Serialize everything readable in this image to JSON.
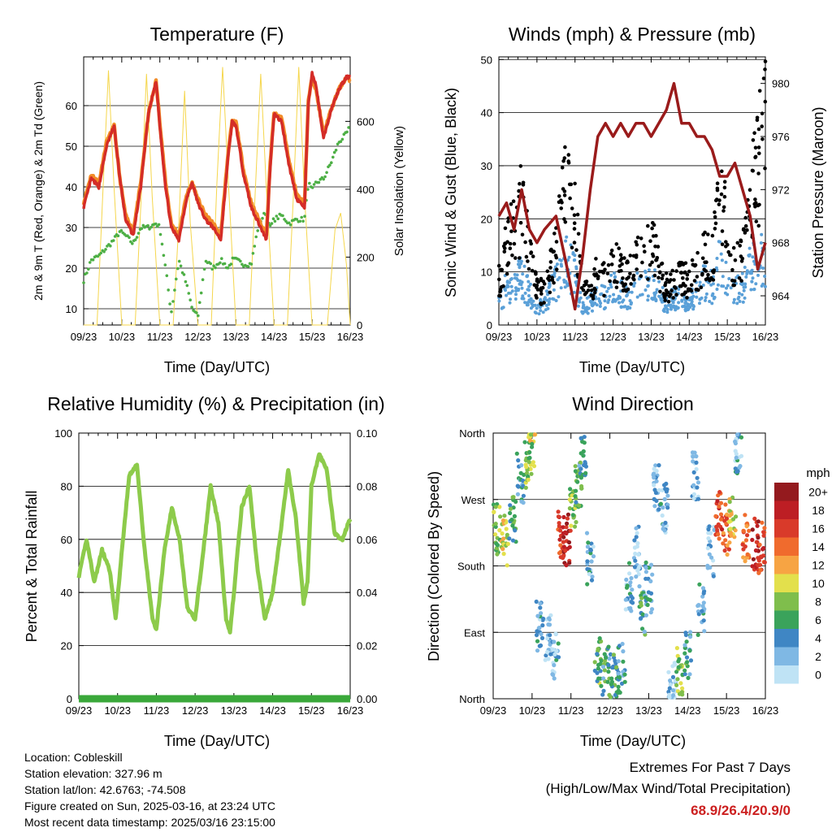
{
  "colors": {
    "t2m": "#d42c27",
    "t9m": "#f28c28",
    "td": "#4daf45",
    "solar": "#f5d64c",
    "wind": "#000000",
    "gust": "#5aa0d8",
    "pressure": "#9a1b1b",
    "rh": "#8dcb4b",
    "precip": "#3aa83a",
    "extremes": "#cc1f1f"
  },
  "time_ticks": [
    "09/23",
    "10/23",
    "11/23",
    "12/23",
    "13/23",
    "14/23",
    "15/23",
    "16/23"
  ],
  "chart_data": [
    {
      "id": "temperature",
      "type": "line",
      "title": "Temperature (F)",
      "xlabel": "Time (Day/UTC)",
      "ylabel": "2m & 9m T (Red, Orange) & 2m Td (Green)",
      "y2label": "Solar Insolation (Yellow)",
      "ylim": [
        6,
        72
      ],
      "yticks": [
        10,
        20,
        30,
        40,
        50,
        60
      ],
      "y2lim": [
        0,
        790
      ],
      "y2ticks": [
        0,
        200,
        400,
        600
      ],
      "x": [
        9.0,
        9.2,
        9.4,
        9.6,
        9.8,
        9.95,
        10.1,
        10.3,
        10.5,
        10.7,
        10.9,
        11.0,
        11.15,
        11.3,
        11.5,
        11.7,
        11.85,
        12.0,
        12.2,
        12.4,
        12.6,
        12.8,
        12.9,
        13.0,
        13.2,
        13.4,
        13.6,
        13.8,
        13.9,
        14.0,
        14.2,
        14.4,
        14.6,
        14.8,
        14.9,
        15.0,
        15.1,
        15.3,
        15.5,
        15.7,
        15.9,
        16.0
      ],
      "series": [
        {
          "name": "2m T",
          "values": [
            35,
            42,
            40,
            50,
            55,
            42,
            32,
            28,
            40,
            58,
            66,
            55,
            40,
            30,
            27,
            37,
            41,
            36,
            32,
            30,
            27,
            48,
            56,
            55,
            43,
            35,
            31,
            27,
            45,
            58,
            56,
            45,
            37,
            35,
            60,
            68,
            65,
            52,
            59,
            64,
            67,
            67
          ]
        },
        {
          "name": "9m T",
          "values": [
            36,
            43,
            41,
            51,
            55,
            42,
            33,
            29,
            41,
            58,
            66,
            56,
            41,
            31,
            28,
            38,
            41,
            37,
            33,
            31,
            28,
            49,
            56,
            56,
            44,
            36,
            32,
            28,
            46,
            58,
            57,
            46,
            38,
            36,
            61,
            67,
            64,
            53,
            59,
            64,
            67,
            66
          ]
        },
        {
          "name": "2m Td",
          "values": [
            17,
            22,
            23,
            25,
            27,
            29,
            28,
            26,
            30,
            30,
            31,
            30,
            20,
            9,
            22,
            16,
            10,
            8,
            22,
            20,
            22,
            20,
            22,
            22,
            21,
            21,
            31,
            34,
            30,
            32,
            33,
            31,
            32,
            32,
            41,
            39,
            41,
            42,
            46,
            51,
            53,
            55
          ]
        },
        {
          "name": "Solar Insolation",
          "axis": "y2",
          "x": [
            9.0,
            9.2,
            9.35,
            9.5,
            9.65,
            9.8,
            10.0,
            10.35,
            10.5,
            10.65,
            10.8,
            11.0,
            11.35,
            11.5,
            11.65,
            11.8,
            12.0,
            12.35,
            12.5,
            12.65,
            12.8,
            13.0,
            13.35,
            13.5,
            13.65,
            13.8,
            14.0,
            14.35,
            14.5,
            14.65,
            14.8,
            15.0,
            15.4,
            15.6,
            15.75,
            15.9,
            16.0
          ],
          "values": [
            0,
            0,
            0,
            380,
            750,
            400,
            0,
            0,
            350,
            740,
            380,
            0,
            0,
            300,
            690,
            300,
            0,
            0,
            420,
            760,
            420,
            0,
            0,
            380,
            740,
            400,
            0,
            0,
            360,
            760,
            380,
            0,
            0,
            280,
            330,
            180,
            0
          ]
        }
      ]
    },
    {
      "id": "winds",
      "type": "scatter",
      "title": "Winds (mph) & Pressure (mb)",
      "xlabel": "Time (Day/UTC)",
      "ylabel": "Sonic Wind & Gust (Blue, Black)",
      "y2label": "Station Pressure (Maroon)",
      "ylim": [
        0,
        50.5
      ],
      "yticks": [
        0,
        10,
        20,
        30,
        40,
        50
      ],
      "y2lim": [
        961.8,
        982
      ],
      "y2ticks": [
        964,
        968,
        972,
        976,
        980
      ],
      "x": [
        9.0,
        9.2,
        9.4,
        9.6,
        9.8,
        10.0,
        10.2,
        10.5,
        10.8,
        11.0,
        11.2,
        11.4,
        11.6,
        11.8,
        12.0,
        12.2,
        12.4,
        12.6,
        12.8,
        13.0,
        13.2,
        13.4,
        13.6,
        13.8,
        14.0,
        14.2,
        14.4,
        14.6,
        14.8,
        15.0,
        15.2,
        15.4,
        15.6,
        15.8,
        16.0
      ],
      "series": [
        {
          "name": "Sonic Wind",
          "values": [
            4,
            7,
            8,
            9,
            6,
            3,
            4,
            8,
            12,
            9,
            3,
            4,
            6,
            5,
            7,
            6,
            5,
            8,
            7,
            9,
            6,
            4,
            5,
            5,
            4,
            6,
            8,
            7,
            12,
            9,
            6,
            7,
            11,
            12,
            13
          ]
        },
        {
          "name": "Gust",
          "values": [
            8,
            14,
            18,
            22,
            14,
            7,
            6,
            14,
            28,
            20,
            6,
            7,
            10,
            9,
            12,
            10,
            9,
            13,
            12,
            16,
            10,
            7,
            8,
            9,
            8,
            10,
            13,
            12,
            24,
            18,
            11,
            12,
            22,
            30,
            36
          ]
        },
        {
          "name": "Station Pressure",
          "axis": "y2",
          "values": [
            970,
            971,
            969,
            972,
            969,
            968,
            969,
            970,
            966,
            963,
            967,
            972,
            976,
            977,
            976,
            977,
            976,
            977,
            977,
            976,
            977,
            978,
            980,
            977,
            977,
            976,
            976,
            975,
            973,
            973,
            974,
            972,
            970,
            966,
            968
          ]
        }
      ]
    },
    {
      "id": "humidity",
      "type": "line",
      "title": "Relative Humidity (%) & Precipitation (in)",
      "xlabel": "Time (Day/UTC)",
      "ylabel": "Percent & Total Rainfall",
      "y2label": "",
      "ylim": [
        0,
        100
      ],
      "yticks": [
        0,
        20,
        40,
        60,
        80,
        100
      ],
      "y2lim": [
        0,
        0.1
      ],
      "y2ticks": [
        "0.00",
        "0.02",
        "0.04",
        "0.06",
        "0.08",
        "0.10"
      ],
      "x": [
        9.0,
        9.2,
        9.4,
        9.6,
        9.8,
        9.95,
        10.1,
        10.3,
        10.5,
        10.7,
        10.9,
        11.0,
        11.2,
        11.4,
        11.6,
        11.8,
        12.0,
        12.2,
        12.4,
        12.6,
        12.8,
        12.9,
        13.0,
        13.2,
        13.4,
        13.6,
        13.8,
        14.0,
        14.2,
        14.4,
        14.6,
        14.8,
        14.9,
        15.0,
        15.2,
        15.4,
        15.6,
        15.8,
        16.0
      ],
      "series": [
        {
          "name": "Relative Humidity",
          "values": [
            46,
            60,
            44,
            56,
            48,
            30,
            54,
            84,
            88,
            56,
            30,
            26,
            55,
            72,
            60,
            34,
            30,
            54,
            80,
            66,
            30,
            25,
            40,
            72,
            80,
            50,
            30,
            40,
            62,
            86,
            68,
            36,
            44,
            80,
            92,
            86,
            62,
            60,
            68
          ]
        },
        {
          "name": "Total Precipitation",
          "axis": "y2",
          "values": [
            0,
            0,
            0,
            0,
            0,
            0,
            0,
            0,
            0,
            0,
            0,
            0,
            0,
            0,
            0,
            0,
            0,
            0,
            0,
            0,
            0,
            0,
            0,
            0,
            0,
            0,
            0,
            0,
            0,
            0,
            0,
            0,
            0,
            0,
            0,
            0,
            0,
            0,
            0
          ]
        }
      ]
    },
    {
      "id": "wind-direction",
      "type": "scatter",
      "title": "Wind Direction",
      "xlabel": "Time (Day/UTC)",
      "ylabel": "Direction (Colored By Speed)",
      "yticks": [
        "North",
        "East",
        "South",
        "West",
        "North"
      ],
      "ylim": [
        0,
        360
      ],
      "colorbar": {
        "title": "mph",
        "labels": [
          "0",
          "2",
          "4",
          "6",
          "8",
          "10",
          "12",
          "14",
          "16",
          "18",
          "20+"
        ],
        "colors": [
          "#bfe3f5",
          "#7fb8e4",
          "#3f86c4",
          "#3aa35b",
          "#7fbe4c",
          "#e3e04c",
          "#f7a443",
          "#f06b2d",
          "#d93a2a",
          "#bd1e24",
          "#941a1e"
        ]
      },
      "clusters": [
        {
          "x": 9.1,
          "dir": 230,
          "speed": 8
        },
        {
          "x": 9.3,
          "dir": 215,
          "speed": 10
        },
        {
          "x": 9.5,
          "dir": 240,
          "speed": 6
        },
        {
          "x": 9.7,
          "dir": 300,
          "speed": 4
        },
        {
          "x": 9.9,
          "dir": 320,
          "speed": 8
        },
        {
          "x": 10.0,
          "dir": 340,
          "speed": 9
        },
        {
          "x": 10.2,
          "dir": 100,
          "speed": 3
        },
        {
          "x": 10.4,
          "dir": 80,
          "speed": 2
        },
        {
          "x": 10.6,
          "dir": 60,
          "speed": 3
        },
        {
          "x": 10.75,
          "dir": 220,
          "speed": 16
        },
        {
          "x": 10.9,
          "dir": 215,
          "speed": 18
        },
        {
          "x": 11.05,
          "dir": 260,
          "speed": 8
        },
        {
          "x": 11.2,
          "dir": 290,
          "speed": 6
        },
        {
          "x": 11.3,
          "dir": 320,
          "speed": 5
        },
        {
          "x": 11.5,
          "dir": 190,
          "speed": 3
        },
        {
          "x": 11.7,
          "dir": 50,
          "speed": 7
        },
        {
          "x": 11.9,
          "dir": 40,
          "speed": 5
        },
        {
          "x": 12.1,
          "dir": 30,
          "speed": 6
        },
        {
          "x": 12.3,
          "dir": 40,
          "speed": 4
        },
        {
          "x": 12.5,
          "dir": 150,
          "speed": 3
        },
        {
          "x": 12.7,
          "dir": 200,
          "speed": 2
        },
        {
          "x": 12.85,
          "dir": 120,
          "speed": 5
        },
        {
          "x": 13.0,
          "dir": 150,
          "speed": 4
        },
        {
          "x": 13.2,
          "dir": 290,
          "speed": 2
        },
        {
          "x": 13.4,
          "dir": 260,
          "speed": 3
        },
        {
          "x": 13.6,
          "dir": 20,
          "speed": 1
        },
        {
          "x": 13.8,
          "dir": 35,
          "speed": 8
        },
        {
          "x": 14.0,
          "dir": 60,
          "speed": 5
        },
        {
          "x": 14.2,
          "dir": 300,
          "speed": 2
        },
        {
          "x": 14.35,
          "dir": 120,
          "speed": 3
        },
        {
          "x": 14.6,
          "dir": 200,
          "speed": 2
        },
        {
          "x": 14.8,
          "dir": 250,
          "speed": 16
        },
        {
          "x": 15.0,
          "dir": 230,
          "speed": 14
        },
        {
          "x": 15.15,
          "dir": 240,
          "speed": 10
        },
        {
          "x": 15.3,
          "dir": 340,
          "speed": 3
        },
        {
          "x": 15.5,
          "dir": 220,
          "speed": 14
        },
        {
          "x": 15.75,
          "dir": 210,
          "speed": 18
        },
        {
          "x": 15.9,
          "dir": 205,
          "speed": 16
        }
      ]
    }
  ],
  "info": {
    "location": "Location: Cobleskill",
    "elevation": "Station elevation: 327.96 m",
    "latlon": "Station lat/lon: 42.6763; -74.508",
    "created": "Figure created on Sun, 2025-03-16, at 23:24 UTC",
    "latest": "Most recent data timestamp: 2025/03/16 23:15:00"
  },
  "extremes": {
    "title": "Extremes For Past 7 Days",
    "subtitle": "(High/Low/Max Wind/Total Precipitation)",
    "values": "68.9/26.4/20.9/0"
  }
}
